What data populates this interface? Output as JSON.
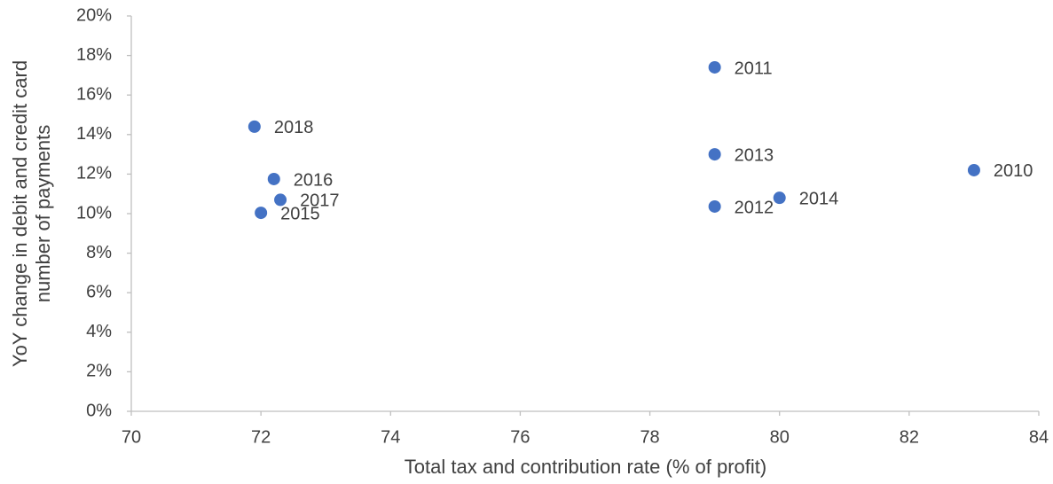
{
  "chart_data": {
    "type": "scatter",
    "xlabel": "Total tax and contribution rate (% of profit)",
    "ylabel": [
      "YoY change in debit and credit card",
      "number of payments"
    ],
    "labels": [
      "2011",
      "2018",
      "2013",
      "2010",
      "2016",
      "2017",
      "2014",
      "2012",
      "2015"
    ],
    "x": [
      79.0,
      71.9,
      79.0,
      83.0,
      72.2,
      72.3,
      80.0,
      79.0,
      72.0
    ],
    "values": [
      17.4,
      14.4,
      13.0,
      12.2,
      11.75,
      10.7,
      10.8,
      10.36,
      10.04
    ],
    "color": "#4472c4",
    "xlim": [
      70,
      84
    ],
    "xticks": [
      70,
      72,
      74,
      76,
      78,
      80,
      82,
      84
    ],
    "ylim": [
      0,
      20
    ],
    "yticks": [
      {
        "value": 0,
        "label": "0%"
      },
      {
        "value": 2,
        "label": "2%"
      },
      {
        "value": 4,
        "label": "4%"
      },
      {
        "value": 6,
        "label": "6%"
      },
      {
        "value": 8,
        "label": "8%"
      },
      {
        "value": 10,
        "label": "10%"
      },
      {
        "value": 12,
        "label": "12%"
      },
      {
        "value": 14,
        "label": "14%"
      },
      {
        "value": 16,
        "label": "16%"
      },
      {
        "value": 18,
        "label": "18%"
      },
      {
        "value": 20,
        "label": "20%"
      }
    ],
    "grid": false
  }
}
